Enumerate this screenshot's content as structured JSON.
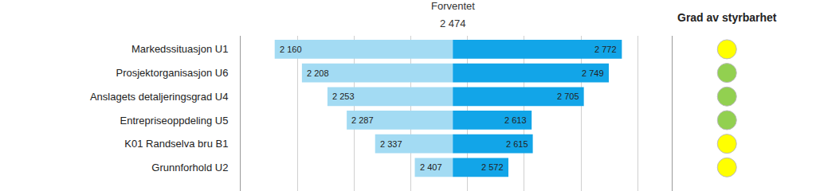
{
  "chart_data": {
    "type": "bar",
    "orientation": "horizontal",
    "categories": [
      "Markedssituasjon U1",
      "Prosjektorganisasjon U6",
      "Anslagets detaljeringsgrad U4",
      "Entrepriseoppdeling U5",
      "K01 Randselva bru B1",
      "Grunnforhold U2"
    ],
    "expected": {
      "label": "Forventet",
      "value": 2474,
      "value_label": "2 474"
    },
    "series": [
      {
        "color": "#a3dbf3",
        "values": [
          2160,
          2208,
          2253,
          2287,
          2337,
          2407
        ],
        "value_labels": [
          "2 160",
          "2 208",
          "2 253",
          "2 287",
          "2 337",
          "2 407"
        ]
      },
      {
        "color": "#12a5e8",
        "values": [
          2772,
          2749,
          2705,
          2613,
          2615,
          2572
        ],
        "value_labels": [
          "2 772",
          "2 749",
          "2 705",
          "2 613",
          "2 615",
          "2 572"
        ]
      }
    ],
    "xlim": [
      2100,
      2860
    ],
    "xticks": [
      2200,
      2300,
      2400,
      2500,
      2600,
      2700,
      2800
    ],
    "grid": true,
    "data_labels": true,
    "tick_labels": "y",
    "styrbarhet": {
      "title": "Grad av styrbarhet",
      "colors": [
        "#ffff00",
        "#92d050",
        "#92d050",
        "#92d050",
        "#ffff00",
        "#ffff00"
      ]
    }
  }
}
